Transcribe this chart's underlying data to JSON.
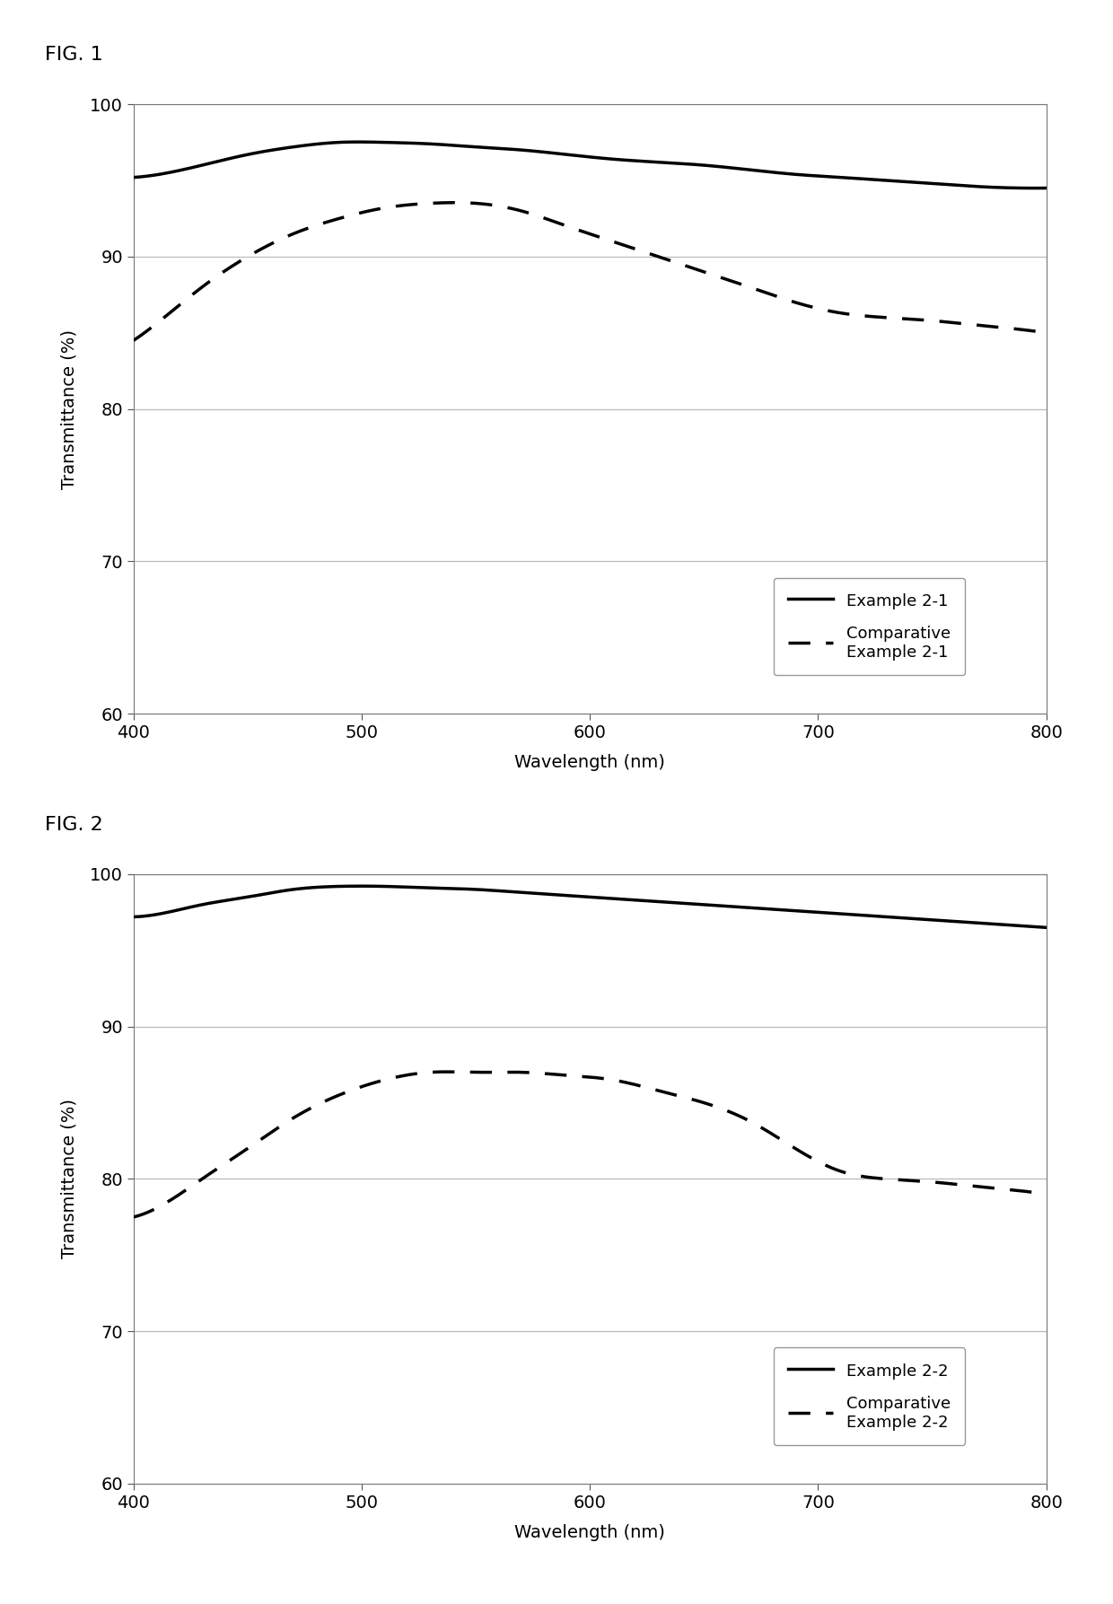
{
  "fig1_label": "FIG. 1",
  "fig2_label": "FIG. 2",
  "xlabel": "Wavelength (nm)",
  "ylabel": "Transmittance (%)",
  "xlim": [
    400,
    800
  ],
  "ylim": [
    60,
    100
  ],
  "yticks": [
    60,
    70,
    80,
    90,
    100
  ],
  "xticks": [
    400,
    500,
    600,
    700,
    800
  ],
  "fig1_solid_x": [
    400,
    415,
    430,
    450,
    470,
    490,
    510,
    530,
    550,
    570,
    590,
    610,
    630,
    650,
    670,
    690,
    710,
    730,
    750,
    770,
    790,
    800
  ],
  "fig1_solid_y": [
    95.2,
    95.5,
    96.0,
    96.7,
    97.2,
    97.5,
    97.5,
    97.4,
    97.2,
    97.0,
    96.7,
    96.4,
    96.2,
    96.0,
    95.7,
    95.4,
    95.2,
    95.0,
    94.8,
    94.6,
    94.5,
    94.5
  ],
  "fig1_dashed_x": [
    400,
    415,
    430,
    450,
    470,
    490,
    510,
    530,
    550,
    570,
    590,
    610,
    630,
    650,
    670,
    690,
    710,
    730,
    750,
    770,
    790,
    800
  ],
  "fig1_dashed_y": [
    84.5,
    86.2,
    88.0,
    90.0,
    91.5,
    92.5,
    93.2,
    93.5,
    93.5,
    93.0,
    92.0,
    91.0,
    90.0,
    89.0,
    88.0,
    87.0,
    86.3,
    86.0,
    85.8,
    85.5,
    85.2,
    85.0
  ],
  "fig2_solid_x": [
    400,
    415,
    430,
    450,
    470,
    490,
    510,
    530,
    550,
    570,
    590,
    610,
    630,
    650,
    670,
    690,
    710,
    730,
    750,
    770,
    790,
    800
  ],
  "fig2_solid_y": [
    97.2,
    97.5,
    98.0,
    98.5,
    99.0,
    99.2,
    99.2,
    99.1,
    99.0,
    98.8,
    98.6,
    98.4,
    98.2,
    98.0,
    97.8,
    97.6,
    97.4,
    97.2,
    97.0,
    96.8,
    96.6,
    96.5
  ],
  "fig2_dashed_x": [
    400,
    415,
    430,
    450,
    470,
    490,
    510,
    530,
    550,
    570,
    590,
    610,
    630,
    650,
    670,
    690,
    710,
    730,
    750,
    770,
    790,
    800
  ],
  "fig2_dashed_y": [
    77.5,
    78.5,
    80.0,
    82.0,
    84.0,
    85.5,
    86.5,
    87.0,
    87.0,
    87.0,
    86.8,
    86.5,
    85.8,
    85.0,
    83.8,
    82.0,
    80.5,
    80.0,
    79.8,
    79.5,
    79.2,
    79.0
  ],
  "legend1_solid": "Example 2-1",
  "legend1_dashed": "Comparative\nExample 2-1",
  "legend2_solid": "Example 2-2",
  "legend2_dashed": "Comparative\nExample 2-2",
  "line_color": "#000000",
  "background_color": "#ffffff",
  "grid_color": "#bbbbbb",
  "fig_label_fontsize": 16,
  "axis_label_fontsize": 14,
  "tick_fontsize": 14,
  "legend_fontsize": 13,
  "line_width": 2.5
}
